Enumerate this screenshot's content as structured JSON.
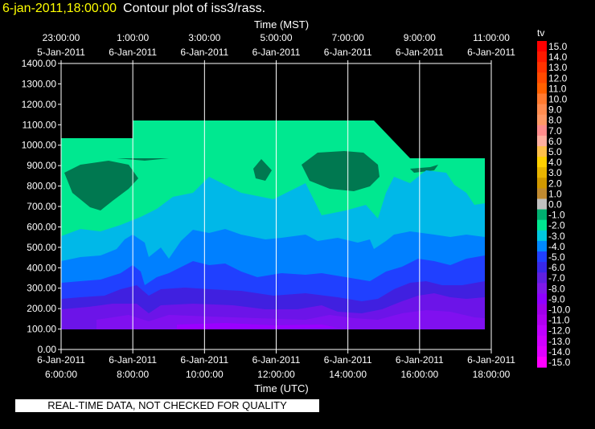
{
  "title": {
    "date": "6-jan-2011,18:00:00",
    "text": "Contour plot of iss3/rass."
  },
  "disclaimer": "REAL-TIME DATA, NOT CHECKED FOR QUALITY",
  "colors": {
    "background": "#000000",
    "foreground": "#ffffff",
    "title_date": "#ffff00"
  },
  "chart_data": {
    "type": "heatmap",
    "title": "Contour plot of iss3/rass.",
    "variable": "tv",
    "xlabel_top": "Time (MST)",
    "xlabel_bottom": "Time (UTC)",
    "ylim": [
      0,
      1400
    ],
    "y_ticks": [
      "0.00",
      "100.00",
      "200.00",
      "300.00",
      "400.00",
      "500.00",
      "600.00",
      "700.00",
      "800.00",
      "900.00",
      "1000.00",
      "1100.00",
      "1200.00",
      "1300.00",
      "1400.00"
    ],
    "x_ticks_bottom": [
      {
        "date": "6-Jan-2011",
        "time": "6:00:00"
      },
      {
        "date": "6-Jan-2011",
        "time": "8:00:00"
      },
      {
        "date": "6-Jan-2011",
        "time": "10:00:00"
      },
      {
        "date": "6-Jan-2011",
        "time": "12:00:00"
      },
      {
        "date": "6-Jan-2011",
        "time": "14:00:00"
      },
      {
        "date": "6-Jan-2011",
        "time": "16:00:00"
      },
      {
        "date": "6-Jan-2011",
        "time": "18:00:00"
      }
    ],
    "x_ticks_top": [
      {
        "time": "23:00:00",
        "date": "5-Jan-2011"
      },
      {
        "time": "1:00:00",
        "date": "6-Jan-2011"
      },
      {
        "time": "3:00:00",
        "date": "6-Jan-2011"
      },
      {
        "time": "5:00:00",
        "date": "6-Jan-2011"
      },
      {
        "time": "7:00:00",
        "date": "6-Jan-2011"
      },
      {
        "time": "9:00:00",
        "date": "6-Jan-2011"
      },
      {
        "time": "11:00:00",
        "date": "6-Jan-2011"
      }
    ],
    "x_range_hours_utc": [
      6,
      18
    ],
    "grid": true,
    "legend": {
      "title": "tv",
      "placement": "right",
      "labels": [
        "15.0",
        "14.0",
        "13.0",
        "12.0",
        "11.0",
        "10.0",
        "9.0",
        "8.0",
        "7.0",
        "6.0",
        "5.0",
        "4.0",
        "3.0",
        "2.0",
        "1.0",
        "0.0",
        "-1.0",
        "-2.0",
        "-3.0",
        "-4.0",
        "-5.0",
        "-6.0",
        "-7.0",
        "-8.0",
        "-9.0",
        "-10.0",
        "-11.0",
        "-12.0",
        "-13.0",
        "-14.0",
        "-15.0"
      ],
      "colors": [
        "#ff0000",
        "#ff1a00",
        "#ff3300",
        "#ff4a00",
        "#ff6000",
        "#ff7a30",
        "#ff8c50",
        "#ff9966",
        "#ff8c8c",
        "#ffb0a0",
        "#ffc04a",
        "#ffd000",
        "#e8b400",
        "#d09800",
        "#c08a30",
        "#c0c0c0",
        "#00b070",
        "#00e890",
        "#00c8e0",
        "#0088ff",
        "#2040ff",
        "#3828e8",
        "#6020e0",
        "#8018e8",
        "#9000ff",
        "#a000e8",
        "#b000f0",
        "#c000ff",
        "#d000ff",
        "#e000ff",
        "#ff00ff"
      ]
    },
    "filled_levels": [
      {
        "level": "-1.0",
        "color": "#007850"
      },
      {
        "level": "-2.0",
        "color": "#00e890"
      },
      {
        "level": "-3.0",
        "color": "#00b8e8"
      },
      {
        "level": "-4.0",
        "color": "#0080ff"
      },
      {
        "level": "-5.0",
        "color": "#2040ff"
      },
      {
        "level": "-6.0",
        "color": "#4020e0"
      },
      {
        "level": "-7.0",
        "color": "#6c14e8"
      },
      {
        "level": "-8.0",
        "color": "#8010f0"
      },
      {
        "level": "-9.0",
        "color": "#9a00ff"
      }
    ]
  }
}
